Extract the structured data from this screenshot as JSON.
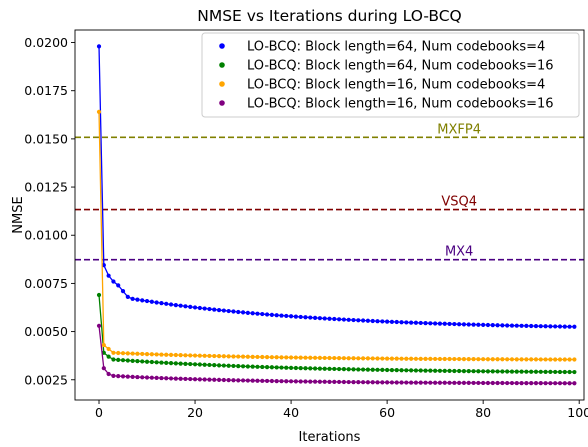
{
  "chart_data": {
    "type": "line",
    "title": "NMSE vs Iterations during LO-BCQ",
    "xlabel": "Iterations",
    "ylabel": "NMSE",
    "xlim": [
      -5,
      101
    ],
    "ylim": [
      0.00145,
      0.02065
    ],
    "xticks": [
      0,
      20,
      40,
      60,
      80,
      100
    ],
    "yticks": [
      0.0025,
      0.005,
      0.0075,
      0.01,
      0.0125,
      0.015,
      0.0175,
      0.02
    ],
    "ytick_labels": [
      "0.0025",
      "0.0050",
      "0.0075",
      "0.0100",
      "0.0125",
      "0.0150",
      "0.0175",
      "0.0200"
    ],
    "grid": false,
    "legend_position": "top-right",
    "reference_lines": [
      {
        "label": "MXFP4",
        "y": 0.01508,
        "color": "#808000"
      },
      {
        "label": "VSQ4",
        "y": 0.01133,
        "color": "#800000"
      },
      {
        "label": "MX4",
        "y": 0.00873,
        "color": "#4b0082"
      }
    ],
    "series": [
      {
        "name": "LO-BCQ: Block length=64, Num codebooks=4",
        "color": "#0000ff",
        "x0": [
          0,
          1,
          2,
          3,
          4,
          5,
          6
        ],
        "y0": [
          0.0198,
          0.00845,
          0.0079,
          0.0076,
          0.0074,
          0.0071,
          0.0068
        ],
        "tail": {
          "from": 7,
          "to": 99,
          "start": 0.0067,
          "end": 0.00525,
          "decay": 40
        }
      },
      {
        "name": "LO-BCQ: Block length=64, Num codebooks=16",
        "color": "#008000",
        "x0": [
          0,
          1,
          2
        ],
        "y0": [
          0.0069,
          0.0039,
          0.0037
        ],
        "tail": {
          "from": 3,
          "to": 99,
          "start": 0.00355,
          "end": 0.0029,
          "decay": 40
        }
      },
      {
        "name": "LO-BCQ: Block length=16, Num codebooks=4",
        "color": "#ffa500",
        "x0": [
          0,
          1,
          2
        ],
        "y0": [
          0.0164,
          0.0043,
          0.0041
        ],
        "tail": {
          "from": 3,
          "to": 99,
          "start": 0.0039,
          "end": 0.00355,
          "decay": 35
        }
      },
      {
        "name": "LO-BCQ: Block length=16, Num codebooks=16",
        "color": "#800080",
        "x0": [
          0,
          1,
          2
        ],
        "y0": [
          0.0053,
          0.0031,
          0.0028
        ],
        "tail": {
          "from": 3,
          "to": 99,
          "start": 0.0027,
          "end": 0.00232,
          "decay": 30
        }
      }
    ]
  }
}
